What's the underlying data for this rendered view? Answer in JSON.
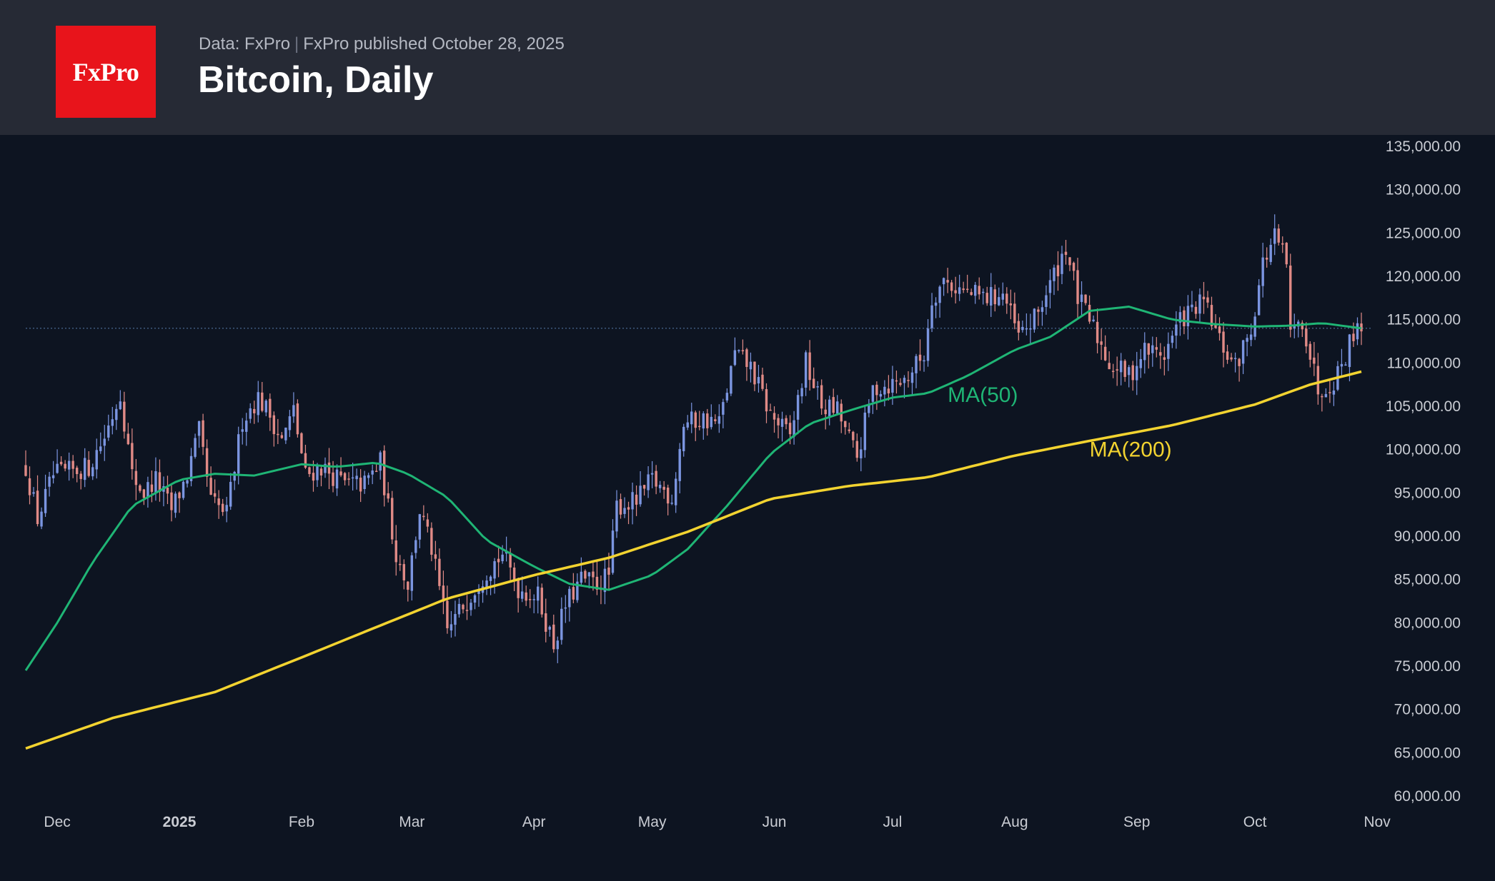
{
  "header": {
    "logo_text": "FxPro",
    "source": "Data: FxPro",
    "published": "FxPro published October 28, 2025",
    "title": "Bitcoin, Daily"
  },
  "colors": {
    "background": "#0d1421",
    "header_background": "#262a35",
    "logo_red": "#e8141b",
    "candle_up": "#7b95e0",
    "candle_down": "#e08a86",
    "ma50": "#1fb575",
    "ma200": "#f2d330",
    "last_price_line": "#4f6f9a"
  },
  "chart_data": {
    "type": "candlestick",
    "title": "Bitcoin, Daily",
    "y_axis": {
      "min": 60000,
      "max": 135000,
      "ticks": [
        "135,000.00",
        "130,000.00",
        "125,000.00",
        "120,000.00",
        "115,000.00",
        "110,000.00",
        "105,000.00",
        "100,000.00",
        "95,000.00",
        "90,000.00",
        "85,000.00",
        "80,000.00",
        "75,000.00",
        "70,000.00",
        "65,000.00",
        "60,000.00"
      ],
      "position": "right"
    },
    "x_axis": {
      "start": "2024-11-23",
      "end": "2025-10-28",
      "ticks": [
        {
          "date": "2024-12-01",
          "label": "Dec",
          "bold": false
        },
        {
          "date": "2025-01-01",
          "label": "2025",
          "bold": true
        },
        {
          "date": "2025-02-01",
          "label": "Feb",
          "bold": false
        },
        {
          "date": "2025-03-01",
          "label": "Mar",
          "bold": false
        },
        {
          "date": "2025-04-01",
          "label": "Apr",
          "bold": false
        },
        {
          "date": "2025-05-01",
          "label": "May",
          "bold": false
        },
        {
          "date": "2025-06-01",
          "label": "Jun",
          "bold": false
        },
        {
          "date": "2025-07-01",
          "label": "Jul",
          "bold": false
        },
        {
          "date": "2025-08-01",
          "label": "Aug",
          "bold": false
        },
        {
          "date": "2025-09-01",
          "label": "Sep",
          "bold": false
        },
        {
          "date": "2025-10-01",
          "label": "Oct",
          "bold": false
        },
        {
          "date": "2025-11-01",
          "label": "Nov",
          "bold": false
        }
      ]
    },
    "price_path": [
      [
        "2024-11-23",
        98000
      ],
      [
        "2024-11-26",
        92000
      ],
      [
        "2024-11-30",
        97000
      ],
      [
        "2024-12-05",
        97500
      ],
      [
        "2024-12-09",
        98000
      ],
      [
        "2024-12-13",
        101500
      ],
      [
        "2024-12-17",
        106500
      ],
      [
        "2024-12-20",
        97000
      ],
      [
        "2024-12-23",
        95000
      ],
      [
        "2024-12-26",
        96500
      ],
      [
        "2024-12-30",
        93000
      ],
      [
        "2025-01-03",
        97000
      ],
      [
        "2025-01-06",
        102000
      ],
      [
        "2025-01-09",
        94000
      ],
      [
        "2025-01-13",
        92500
      ],
      [
        "2025-01-17",
        103500
      ],
      [
        "2025-01-21",
        106000
      ],
      [
        "2025-01-24",
        104000
      ],
      [
        "2025-01-27",
        101000
      ],
      [
        "2025-01-30",
        104500
      ],
      [
        "2025-02-02",
        97000
      ],
      [
        "2025-02-06",
        98000
      ],
      [
        "2025-02-12",
        96000
      ],
      [
        "2025-02-17",
        96000
      ],
      [
        "2025-02-21",
        98500
      ],
      [
        "2025-02-25",
        88000
      ],
      [
        "2025-02-28",
        84500
      ],
      [
        "2025-03-03",
        93000
      ],
      [
        "2025-03-06",
        88500
      ],
      [
        "2025-03-10",
        79000
      ],
      [
        "2025-03-14",
        82000
      ],
      [
        "2025-03-19",
        85500
      ],
      [
        "2025-03-24",
        88000
      ],
      [
        "2025-03-28",
        84000
      ],
      [
        "2025-04-02",
        83000
      ],
      [
        "2025-04-06",
        77500
      ],
      [
        "2025-04-09",
        82000
      ],
      [
        "2025-04-13",
        85000
      ],
      [
        "2025-04-17",
        84500
      ],
      [
        "2025-04-20",
        85500
      ],
      [
        "2025-04-22",
        93500
      ],
      [
        "2025-04-27",
        94000
      ],
      [
        "2025-05-01",
        96500
      ],
      [
        "2025-05-06",
        94500
      ],
      [
        "2025-05-09",
        103000
      ],
      [
        "2025-05-14",
        103500
      ],
      [
        "2025-05-18",
        103000
      ],
      [
        "2025-05-22",
        111000
      ],
      [
        "2025-05-26",
        109500
      ],
      [
        "2025-05-31",
        104000
      ],
      [
        "2025-06-05",
        101500
      ],
      [
        "2025-06-09",
        110000
      ],
      [
        "2025-06-13",
        105000
      ],
      [
        "2025-06-17",
        104500
      ],
      [
        "2025-06-22",
        99000
      ],
      [
        "2025-06-26",
        107000
      ],
      [
        "2025-06-30",
        107500
      ],
      [
        "2025-07-04",
        108000
      ],
      [
        "2025-07-09",
        111000
      ],
      [
        "2025-07-11",
        117500
      ],
      [
        "2025-07-14",
        119500
      ],
      [
        "2025-07-20",
        118000
      ],
      [
        "2025-07-25",
        117500
      ],
      [
        "2025-07-29",
        118000
      ],
      [
        "2025-08-02",
        113000
      ],
      [
        "2025-08-06",
        115000
      ],
      [
        "2025-08-10",
        119000
      ],
      [
        "2025-08-14",
        123500
      ],
      [
        "2025-08-17",
        117500
      ],
      [
        "2025-08-21",
        114000
      ],
      [
        "2025-08-25",
        110000
      ],
      [
        "2025-08-30",
        108500
      ],
      [
        "2025-09-03",
        111500
      ],
      [
        "2025-09-08",
        111000
      ],
      [
        "2025-09-12",
        115000
      ],
      [
        "2025-09-18",
        117000
      ],
      [
        "2025-09-22",
        112500
      ],
      [
        "2025-09-26",
        109500
      ],
      [
        "2025-09-30",
        114000
      ],
      [
        "2025-10-03",
        121500
      ],
      [
        "2025-10-06",
        124500
      ],
      [
        "2025-10-09",
        121500
      ],
      [
        "2025-10-10",
        113000
      ],
      [
        "2025-10-13",
        115000
      ],
      [
        "2025-10-17",
        107000
      ],
      [
        "2025-10-21",
        108000
      ],
      [
        "2025-10-24",
        111000
      ],
      [
        "2025-10-27",
        115000
      ],
      [
        "2025-10-28",
        114000
      ]
    ],
    "last_price": 114000,
    "series": [
      {
        "name": "MA(50)",
        "color": "#1fb575",
        "points": [
          [
            "2024-11-23",
            74500
          ],
          [
            "2024-12-01",
            80000
          ],
          [
            "2024-12-10",
            87000
          ],
          [
            "2024-12-20",
            93500
          ],
          [
            "2025-01-01",
            96500
          ],
          [
            "2025-01-10",
            97200
          ],
          [
            "2025-01-20",
            97000
          ],
          [
            "2025-02-01",
            98300
          ],
          [
            "2025-02-10",
            98000
          ],
          [
            "2025-02-20",
            98500
          ],
          [
            "2025-02-28",
            97200
          ],
          [
            "2025-03-10",
            94500
          ],
          [
            "2025-03-20",
            89500
          ],
          [
            "2025-04-01",
            86500
          ],
          [
            "2025-04-10",
            84500
          ],
          [
            "2025-04-20",
            83800
          ],
          [
            "2025-05-01",
            85500
          ],
          [
            "2025-05-10",
            88500
          ],
          [
            "2025-05-20",
            93500
          ],
          [
            "2025-05-31",
            99500
          ],
          [
            "2025-06-10",
            103000
          ],
          [
            "2025-06-20",
            104500
          ],
          [
            "2025-07-01",
            106000
          ],
          [
            "2025-07-10",
            106500
          ],
          [
            "2025-07-20",
            108500
          ],
          [
            "2025-08-01",
            111500
          ],
          [
            "2025-08-10",
            113000
          ],
          [
            "2025-08-20",
            116000
          ],
          [
            "2025-08-30",
            116500
          ],
          [
            "2025-09-10",
            115000
          ],
          [
            "2025-09-20",
            114500
          ],
          [
            "2025-10-01",
            114200
          ],
          [
            "2025-10-10",
            114300
          ],
          [
            "2025-10-18",
            114600
          ],
          [
            "2025-10-28",
            114000
          ]
        ],
        "label_at": [
          "2025-07-15",
          105500
        ]
      },
      {
        "name": "MA(200)",
        "color": "#f2d330",
        "points": [
          [
            "2024-11-23",
            65500
          ],
          [
            "2024-12-15",
            69000
          ],
          [
            "2025-01-10",
            72000
          ],
          [
            "2025-02-01",
            76000
          ],
          [
            "2025-02-20",
            79500
          ],
          [
            "2025-03-10",
            82800
          ],
          [
            "2025-04-01",
            85500
          ],
          [
            "2025-04-20",
            87500
          ],
          [
            "2025-05-10",
            90500
          ],
          [
            "2025-05-31",
            94300
          ],
          [
            "2025-06-20",
            95800
          ],
          [
            "2025-07-10",
            96800
          ],
          [
            "2025-08-01",
            99300
          ],
          [
            "2025-08-20",
            101000
          ],
          [
            "2025-09-10",
            102800
          ],
          [
            "2025-10-01",
            105200
          ],
          [
            "2025-10-15",
            107500
          ],
          [
            "2025-10-28",
            109000
          ]
        ],
        "label_at": [
          "2025-08-20",
          99200
        ]
      }
    ],
    "legend": "inline labels",
    "grid": false
  }
}
